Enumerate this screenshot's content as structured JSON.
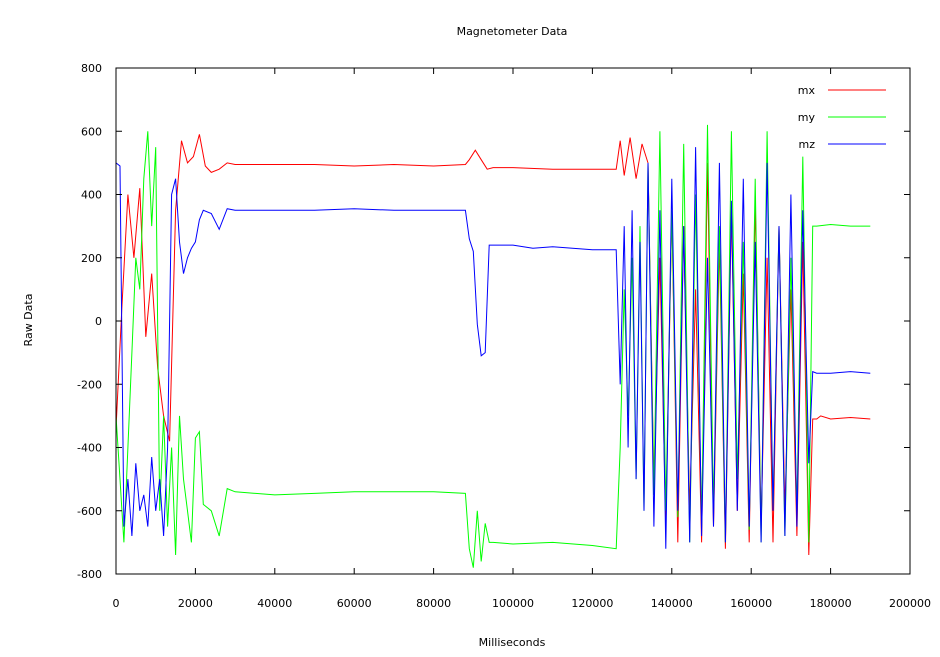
{
  "chart_data": {
    "type": "line",
    "title": "Magnetometer Data",
    "xlabel": "Milliseconds",
    "ylabel": "Raw Data",
    "xlim": [
      0,
      200000
    ],
    "ylim": [
      -800,
      800
    ],
    "xticks": [
      0,
      20000,
      40000,
      60000,
      80000,
      100000,
      120000,
      140000,
      160000,
      180000,
      200000
    ],
    "yticks": [
      -800,
      -600,
      -400,
      -200,
      0,
      200,
      400,
      600,
      800
    ],
    "grid": false,
    "legend_position": "top-right",
    "series": [
      {
        "name": "mx",
        "color": "#ff0000",
        "x": [
          0,
          1500,
          3000,
          4500,
          6000,
          7500,
          9000,
          10500,
          12000,
          13500,
          15000,
          16500,
          18000,
          19500,
          21000,
          22500,
          24000,
          26000,
          28000,
          30000,
          40000,
          50000,
          60000,
          70000,
          80000,
          88000,
          89000,
          90500,
          92000,
          93500,
          95000,
          100000,
          110000,
          120000,
          126000,
          127000,
          128000,
          129500,
          131000,
          132500,
          134000,
          135500,
          137000,
          138500,
          140000,
          141500,
          143000,
          144500,
          146000,
          147500,
          149000,
          150500,
          152000,
          153500,
          155000,
          156500,
          158000,
          159500,
          161000,
          162500,
          164000,
          165500,
          167000,
          168500,
          170000,
          171500,
          173000,
          174500,
          175500,
          176500,
          177500,
          180000,
          185000,
          190000
        ],
        "y": [
          -340,
          50,
          400,
          200,
          420,
          -50,
          150,
          -150,
          -300,
          -380,
          350,
          570,
          500,
          520,
          590,
          490,
          470,
          480,
          500,
          495,
          495,
          495,
          490,
          495,
          490,
          495,
          510,
          540,
          510,
          480,
          485,
          485,
          480,
          480,
          480,
          570,
          460,
          580,
          450,
          560,
          500,
          -520,
          200,
          -650,
          350,
          -700,
          300,
          -600,
          100,
          -700,
          500,
          -650,
          250,
          -720,
          350,
          -600,
          150,
          -700,
          380,
          -650,
          200,
          -700,
          300,
          -600,
          100,
          -680,
          250,
          -740,
          -310,
          -310,
          -300,
          -310,
          -305,
          -310
        ]
      },
      {
        "name": "my",
        "color": "#00ff00",
        "x": [
          0,
          1000,
          2000,
          3000,
          4000,
          5000,
          6000,
          7000,
          8000,
          9000,
          10000,
          11000,
          12000,
          13000,
          14000,
          15000,
          16000,
          17000,
          18000,
          19000,
          20000,
          21000,
          22000,
          24000,
          26000,
          28000,
          30000,
          40000,
          50000,
          60000,
          70000,
          80000,
          88000,
          89000,
          90000,
          91000,
          92000,
          93000,
          94000,
          95000,
          100000,
          110000,
          120000,
          126000,
          127000,
          128000,
          129000,
          130000,
          131000,
          132000,
          133000,
          134000,
          135500,
          137000,
          138500,
          140000,
          141500,
          143000,
          144500,
          146000,
          147500,
          149000,
          150500,
          152000,
          153500,
          155000,
          156500,
          158000,
          159500,
          161000,
          162500,
          164000,
          165500,
          167000,
          168500,
          170000,
          171500,
          173000,
          174500,
          175500,
          176500,
          180000,
          185000,
          190000
        ],
        "y": [
          -300,
          -500,
          -700,
          -400,
          -100,
          200,
          100,
          450,
          600,
          300,
          550,
          -600,
          -300,
          -650,
          -400,
          -740,
          -300,
          -500,
          -600,
          -700,
          -370,
          -350,
          -580,
          -600,
          -680,
          -530,
          -540,
          -550,
          -545,
          -540,
          -540,
          -540,
          -545,
          -720,
          -780,
          -600,
          -760,
          -640,
          -700,
          -700,
          -705,
          -700,
          -710,
          -720,
          -400,
          100,
          -300,
          200,
          -500,
          300,
          -600,
          500,
          -550,
          600,
          -600,
          350,
          -620,
          560,
          -700,
          400,
          -650,
          620,
          -600,
          300,
          -700,
          600,
          -500,
          250,
          -660,
          450,
          -700,
          600,
          -600,
          300,
          -680,
          200,
          -600,
          520,
          -700,
          300,
          300,
          305,
          300,
          300
        ]
      },
      {
        "name": "mz",
        "color": "#0000ff",
        "x": [
          0,
          1000,
          2000,
          3000,
          4000,
          5000,
          6000,
          7000,
          8000,
          9000,
          10000,
          11000,
          12000,
          13000,
          14000,
          15000,
          16000,
          17000,
          18000,
          19000,
          20000,
          21000,
          22000,
          24000,
          26000,
          28000,
          30000,
          40000,
          50000,
          60000,
          70000,
          80000,
          88000,
          89000,
          90000,
          91000,
          92000,
          93000,
          94000,
          95000,
          100000,
          105000,
          110000,
          120000,
          126000,
          127000,
          128000,
          129000,
          130000,
          131000,
          132000,
          133000,
          134000,
          135500,
          137000,
          138500,
          140000,
          141500,
          143000,
          144500,
          146000,
          147500,
          149000,
          150500,
          152000,
          153500,
          155000,
          156500,
          158000,
          159500,
          161000,
          162500,
          164000,
          165500,
          167000,
          168500,
          170000,
          171500,
          173000,
          174500,
          175500,
          176500,
          180000,
          185000,
          190000
        ],
        "y": [
          500,
          490,
          -650,
          -500,
          -680,
          -450,
          -600,
          -550,
          -650,
          -430,
          -600,
          -500,
          -680,
          -400,
          400,
          450,
          250,
          150,
          200,
          230,
          250,
          320,
          350,
          340,
          290,
          355,
          350,
          350,
          350,
          355,
          350,
          350,
          350,
          260,
          220,
          -10,
          -110,
          -100,
          240,
          240,
          240,
          230,
          235,
          225,
          225,
          -200,
          300,
          -400,
          350,
          -500,
          250,
          -600,
          500,
          -650,
          350,
          -720,
          450,
          -600,
          300,
          -700,
          550,
          -680,
          200,
          -650,
          500,
          -700,
          380,
          -600,
          450,
          -650,
          250,
          -700,
          500,
          -600,
          300,
          -680,
          400,
          -650,
          350,
          -450,
          -160,
          -165,
          -165,
          -160,
          -165
        ]
      }
    ]
  }
}
